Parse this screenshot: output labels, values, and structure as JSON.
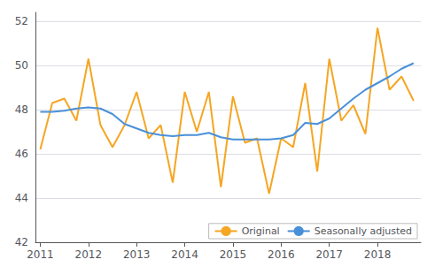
{
  "chart_data": {
    "type": "line",
    "x": [
      2011.0,
      2011.25,
      2011.5,
      2011.75,
      2012.0,
      2012.25,
      2012.5,
      2012.75,
      2013.0,
      2013.25,
      2013.5,
      2013.75,
      2014.0,
      2014.25,
      2014.5,
      2014.75,
      2015.0,
      2015.25,
      2015.5,
      2015.75,
      2016.0,
      2016.25,
      2016.5,
      2016.75,
      2017.0,
      2017.25,
      2017.5,
      2017.75,
      2018.0,
      2018.25,
      2018.5,
      2018.75
    ],
    "series": [
      {
        "name": "Original",
        "color": "#f5a623",
        "values": [
          46.2,
          48.3,
          48.5,
          47.5,
          50.3,
          47.3,
          46.3,
          47.3,
          48.8,
          46.7,
          47.3,
          44.7,
          48.8,
          47.0,
          48.8,
          44.5,
          48.6,
          46.5,
          46.7,
          44.2,
          46.7,
          46.3,
          49.2,
          45.2,
          50.3,
          47.5,
          48.2,
          46.9,
          51.7,
          48.9,
          49.5,
          48.4
        ]
      },
      {
        "name": "Seasonally adjusted",
        "color": "#4a90d9",
        "values": [
          47.9,
          47.9,
          47.95,
          48.05,
          48.1,
          48.05,
          47.8,
          47.35,
          47.15,
          46.95,
          46.85,
          46.8,
          46.85,
          46.85,
          46.95,
          46.75,
          46.65,
          46.65,
          46.65,
          46.65,
          46.7,
          46.85,
          47.4,
          47.35,
          47.6,
          48.05,
          48.5,
          48.9,
          49.2,
          49.5,
          49.85,
          50.1
        ]
      }
    ],
    "xlim": [
      2010.9,
      2018.9
    ],
    "ylim": [
      42,
      52.4
    ],
    "xticks": [
      2011,
      2012,
      2013,
      2014,
      2015,
      2016,
      2017,
      2018
    ],
    "yticks": [
      42,
      44,
      46,
      48,
      50,
      52
    ],
    "grid": true,
    "legend": "lower right"
  }
}
